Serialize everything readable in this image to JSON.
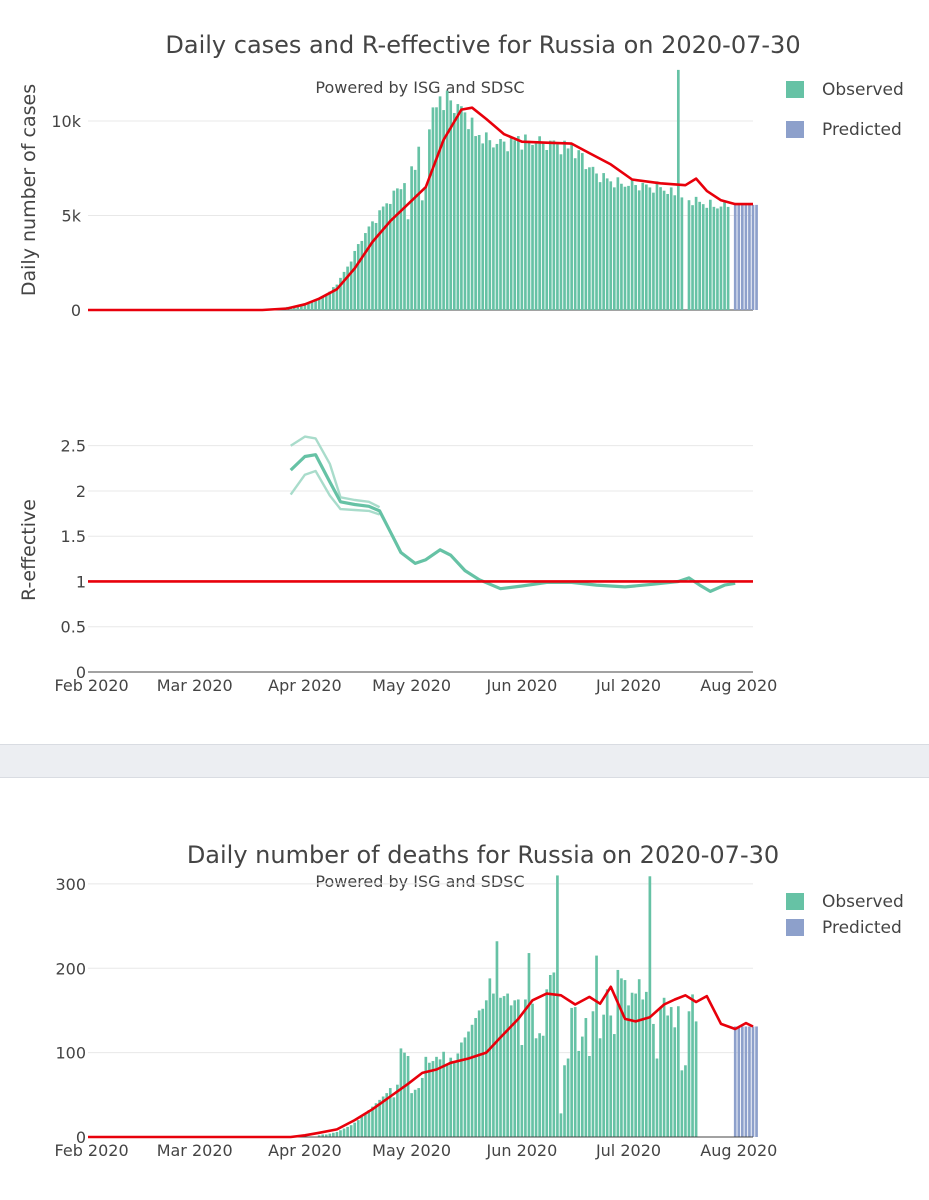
{
  "colors": {
    "observed": "#66c2a5",
    "predicted": "#8da0cb",
    "smooth": "#e8000b",
    "r_band": "#66c2a5",
    "grid": "#e8e8e8",
    "divider": "#eceef2"
  },
  "chart_data": [
    {
      "id": "cases",
      "type": "bar",
      "title": "Daily cases and R-effective for Russia on 2020-07-30",
      "subtitle": "Powered by ISG and SDSC",
      "ylabel": "Daily number of cases",
      "ylim": [
        0,
        12800
      ],
      "yticks": [
        {
          "v": 0,
          "label": "0"
        },
        {
          "v": 5000,
          "label": "5k"
        },
        {
          "v": 10000,
          "label": "10k"
        }
      ],
      "legend": [
        {
          "label": "Observed",
          "color": "#66c2a5"
        },
        {
          "label": "Predicted",
          "color": "#8da0cb"
        }
      ],
      "observed_start": "2020-03-27",
      "observed_knots": [
        [
          0,
          160
        ],
        [
          3,
          210
        ],
        [
          6,
          330
        ],
        [
          9,
          560
        ],
        [
          12,
          960
        ],
        [
          15,
          1650
        ],
        [
          18,
          2650
        ],
        [
          21,
          3800
        ],
        [
          24,
          4600
        ],
        [
          27,
          5400
        ],
        [
          30,
          6100
        ],
        [
          33,
          6800
        ],
        [
          36,
          7800
        ],
        [
          39,
          9800
        ],
        [
          42,
          10600
        ],
        [
          45,
          11000
        ],
        [
          48,
          10800
        ],
        [
          51,
          10100
        ],
        [
          54,
          9300
        ],
        [
          57,
          8900
        ],
        [
          60,
          8800
        ],
        [
          63,
          8850
        ],
        [
          66,
          8900
        ],
        [
          69,
          8900
        ],
        [
          72,
          8850
        ],
        [
          75,
          8800
        ],
        [
          78,
          8600
        ],
        [
          81,
          8300
        ],
        [
          84,
          7700
        ],
        [
          87,
          7200
        ],
        [
          90,
          6900
        ],
        [
          93,
          6700
        ],
        [
          96,
          6650
        ],
        [
          99,
          6600
        ],
        [
          102,
          6500
        ],
        [
          105,
          6500
        ],
        [
          108,
          6200
        ],
        [
          111,
          5900
        ],
        [
          114,
          5800
        ],
        [
          117,
          5650
        ],
        [
          120,
          5500
        ],
        [
          125,
          5500
        ]
      ],
      "observed_overrides": [
        [
          34,
          4800
        ],
        [
          38,
          5800
        ],
        [
          39,
          6500
        ],
        [
          43,
          11300
        ],
        [
          45,
          11600
        ],
        [
          53,
          9200
        ],
        [
          65,
          9200
        ],
        [
          70,
          8900
        ],
        [
          80,
          8800
        ],
        [
          83,
          8300
        ],
        [
          110,
          12700
        ],
        [
          112,
          0
        ]
      ],
      "observed_n": 125,
      "predicted_start": "2020-07-31",
      "predicted_n": 7,
      "predicted_value": 5560,
      "smooth": [
        [
          "2020-01-31",
          0
        ],
        [
          "2020-03-20",
          0
        ],
        [
          "2020-03-27",
          80
        ],
        [
          "2020-04-01",
          300
        ],
        [
          "2020-04-05",
          600
        ],
        [
          "2020-04-10",
          1100
        ],
        [
          "2020-04-15",
          2200
        ],
        [
          "2020-04-20",
          3600
        ],
        [
          "2020-04-25",
          4700
        ],
        [
          "2020-04-30",
          5600
        ],
        [
          "2020-05-05",
          6500
        ],
        [
          "2020-05-10",
          9000
        ],
        [
          "2020-05-15",
          10600
        ],
        [
          "2020-05-18",
          10700
        ],
        [
          "2020-05-22",
          10100
        ],
        [
          "2020-05-27",
          9300
        ],
        [
          "2020-06-01",
          8900
        ],
        [
          "2020-06-08",
          8850
        ],
        [
          "2020-06-15",
          8800
        ],
        [
          "2020-06-20",
          8300
        ],
        [
          "2020-06-26",
          7700
        ],
        [
          "2020-07-02",
          6900
        ],
        [
          "2020-07-10",
          6700
        ],
        [
          "2020-07-17",
          6600
        ],
        [
          "2020-07-20",
          6950
        ],
        [
          "2020-07-23",
          6300
        ],
        [
          "2020-07-27",
          5800
        ],
        [
          "2020-07-31",
          5600
        ],
        [
          "2020-08-05",
          5600
        ]
      ]
    },
    {
      "id": "reff",
      "type": "line",
      "ylabel": "R-effective",
      "ylim": [
        0,
        2.85
      ],
      "yticks": [
        {
          "v": 0,
          "label": "0"
        },
        {
          "v": 0.5,
          "label": "0.5"
        },
        {
          "v": 1,
          "label": "1"
        },
        {
          "v": 1.5,
          "label": "1.5"
        },
        {
          "v": 2,
          "label": "2"
        },
        {
          "v": 2.5,
          "label": "2.5"
        }
      ],
      "xticks": [
        {
          "d": "2020-02-01",
          "label": "Feb 2020"
        },
        {
          "d": "2020-03-01",
          "label": "Mar 2020"
        },
        {
          "d": "2020-04-01",
          "label": "Apr 2020"
        },
        {
          "d": "2020-05-01",
          "label": "May 2020"
        },
        {
          "d": "2020-06-01",
          "label": "Jun 2020"
        },
        {
          "d": "2020-07-01",
          "label": "Jul 2020"
        },
        {
          "d": "2020-08-01",
          "label": "Aug 2020"
        }
      ],
      "threshold": 1,
      "median": [
        [
          "2020-03-28",
          2.23
        ],
        [
          "2020-04-01",
          2.38
        ],
        [
          "2020-04-04",
          2.4
        ],
        [
          "2020-04-08",
          2.1
        ],
        [
          "2020-04-11",
          1.88
        ],
        [
          "2020-04-15",
          1.85
        ],
        [
          "2020-04-19",
          1.83
        ],
        [
          "2020-04-22",
          1.78
        ],
        [
          "2020-04-25",
          1.55
        ],
        [
          "2020-04-28",
          1.32
        ],
        [
          "2020-05-02",
          1.2
        ],
        [
          "2020-05-05",
          1.24
        ],
        [
          "2020-05-09",
          1.35
        ],
        [
          "2020-05-12",
          1.29
        ],
        [
          "2020-05-16",
          1.12
        ],
        [
          "2020-05-20",
          1.02
        ],
        [
          "2020-05-26",
          0.92
        ],
        [
          "2020-06-01",
          0.95
        ],
        [
          "2020-06-08",
          0.99
        ],
        [
          "2020-06-15",
          0.99
        ],
        [
          "2020-06-22",
          0.96
        ],
        [
          "2020-06-30",
          0.94
        ],
        [
          "2020-07-08",
          0.97
        ],
        [
          "2020-07-15",
          1.0
        ],
        [
          "2020-07-18",
          1.04
        ],
        [
          "2020-07-21",
          0.96
        ],
        [
          "2020-07-24",
          0.89
        ],
        [
          "2020-07-28",
          0.96
        ],
        [
          "2020-07-31",
          0.98
        ]
      ],
      "upper": [
        [
          "2020-03-28",
          2.5
        ],
        [
          "2020-04-01",
          2.6
        ],
        [
          "2020-04-04",
          2.58
        ],
        [
          "2020-04-08",
          2.3
        ],
        [
          "2020-04-11",
          1.93
        ],
        [
          "2020-04-15",
          1.9
        ],
        [
          "2020-04-19",
          1.88
        ],
        [
          "2020-04-22",
          1.82
        ]
      ],
      "lower": [
        [
          "2020-03-28",
          1.96
        ],
        [
          "2020-04-01",
          2.18
        ],
        [
          "2020-04-04",
          2.22
        ],
        [
          "2020-04-08",
          1.95
        ],
        [
          "2020-04-11",
          1.8
        ],
        [
          "2020-04-15",
          1.79
        ],
        [
          "2020-04-19",
          1.78
        ],
        [
          "2020-04-22",
          1.74
        ]
      ]
    },
    {
      "id": "deaths",
      "type": "bar",
      "title": "Daily number of deaths for Russia on 2020-07-30",
      "subtitle": "Powered by ISG and SDSC",
      "ylim": [
        0,
        320
      ],
      "yticks": [
        {
          "v": 0,
          "label": "0"
        },
        {
          "v": 100,
          "label": "100"
        },
        {
          "v": 200,
          "label": "200"
        },
        {
          "v": 300,
          "label": "300"
        }
      ],
      "xticks": [
        {
          "d": "2020-02-01",
          "label": "Feb 2020"
        },
        {
          "d": "2020-03-01",
          "label": "Mar 2020"
        },
        {
          "d": "2020-04-01",
          "label": "Apr 2020"
        },
        {
          "d": "2020-05-01",
          "label": "May 2020"
        },
        {
          "d": "2020-06-01",
          "label": "Jun 2020"
        },
        {
          "d": "2020-07-01",
          "label": "Jul 2020"
        },
        {
          "d": "2020-08-01",
          "label": "Aug 2020"
        }
      ],
      "legend": [
        {
          "label": "Observed",
          "color": "#66c2a5"
        },
        {
          "label": "Predicted",
          "color": "#8da0cb"
        }
      ],
      "observed_start": "2020-04-05",
      "observed_values": [
        2,
        3,
        3,
        4,
        5,
        6,
        8,
        10,
        12,
        14,
        17,
        20,
        24,
        28,
        32,
        36,
        40,
        44,
        48,
        52,
        58,
        47,
        62,
        105,
        100,
        96,
        52,
        56,
        58,
        70,
        95,
        88,
        90,
        95,
        92,
        101,
        85,
        94,
        89,
        99,
        112,
        118,
        125,
        133,
        141,
        150,
        152,
        162,
        188,
        170,
        232,
        165,
        167,
        170,
        156,
        162,
        163,
        109,
        163,
        218,
        158,
        117,
        123,
        120,
        175,
        192,
        195,
        310,
        28,
        85,
        93,
        153,
        154,
        102,
        119,
        141,
        96,
        149,
        215,
        117,
        145,
        175,
        144,
        122,
        198,
        188,
        186,
        156,
        171,
        170,
        187,
        163,
        172,
        309,
        134,
        93,
        153,
        165,
        144,
        154,
        130,
        155,
        79,
        85,
        149,
        169,
        137
      ],
      "predicted_start": "2020-07-24",
      "predicted_n": 7,
      "predicted_value": 131,
      "smooth": [
        [
          "2020-01-31",
          0
        ],
        [
          "2020-03-28",
          0
        ],
        [
          "2020-04-01",
          2
        ],
        [
          "2020-04-05",
          5
        ],
        [
          "2020-04-10",
          9
        ],
        [
          "2020-04-15",
          20
        ],
        [
          "2020-04-20",
          33
        ],
        [
          "2020-04-25",
          48
        ],
        [
          "2020-04-30",
          63
        ],
        [
          "2020-05-04",
          76
        ],
        [
          "2020-05-08",
          80
        ],
        [
          "2020-05-12",
          88
        ],
        [
          "2020-05-17",
          93
        ],
        [
          "2020-05-22",
          100
        ],
        [
          "2020-05-26",
          118
        ],
        [
          "2020-05-31",
          140
        ],
        [
          "2020-06-04",
          162
        ],
        [
          "2020-06-08",
          170
        ],
        [
          "2020-06-12",
          168
        ],
        [
          "2020-06-16",
          157
        ],
        [
          "2020-06-20",
          166
        ],
        [
          "2020-06-23",
          158
        ],
        [
          "2020-06-26",
          178
        ],
        [
          "2020-06-30",
          140
        ],
        [
          "2020-07-03",
          137
        ],
        [
          "2020-07-07",
          142
        ],
        [
          "2020-07-11",
          157
        ],
        [
          "2020-07-14",
          163
        ],
        [
          "2020-07-17",
          168
        ],
        [
          "2020-07-20",
          160
        ],
        [
          "2020-07-23",
          167
        ],
        [
          "2020-07-27",
          134
        ],
        [
          "2020-07-31",
          128
        ],
        [
          "2020-08-03",
          135
        ],
        [
          "2020-08-05",
          131
        ]
      ]
    }
  ]
}
